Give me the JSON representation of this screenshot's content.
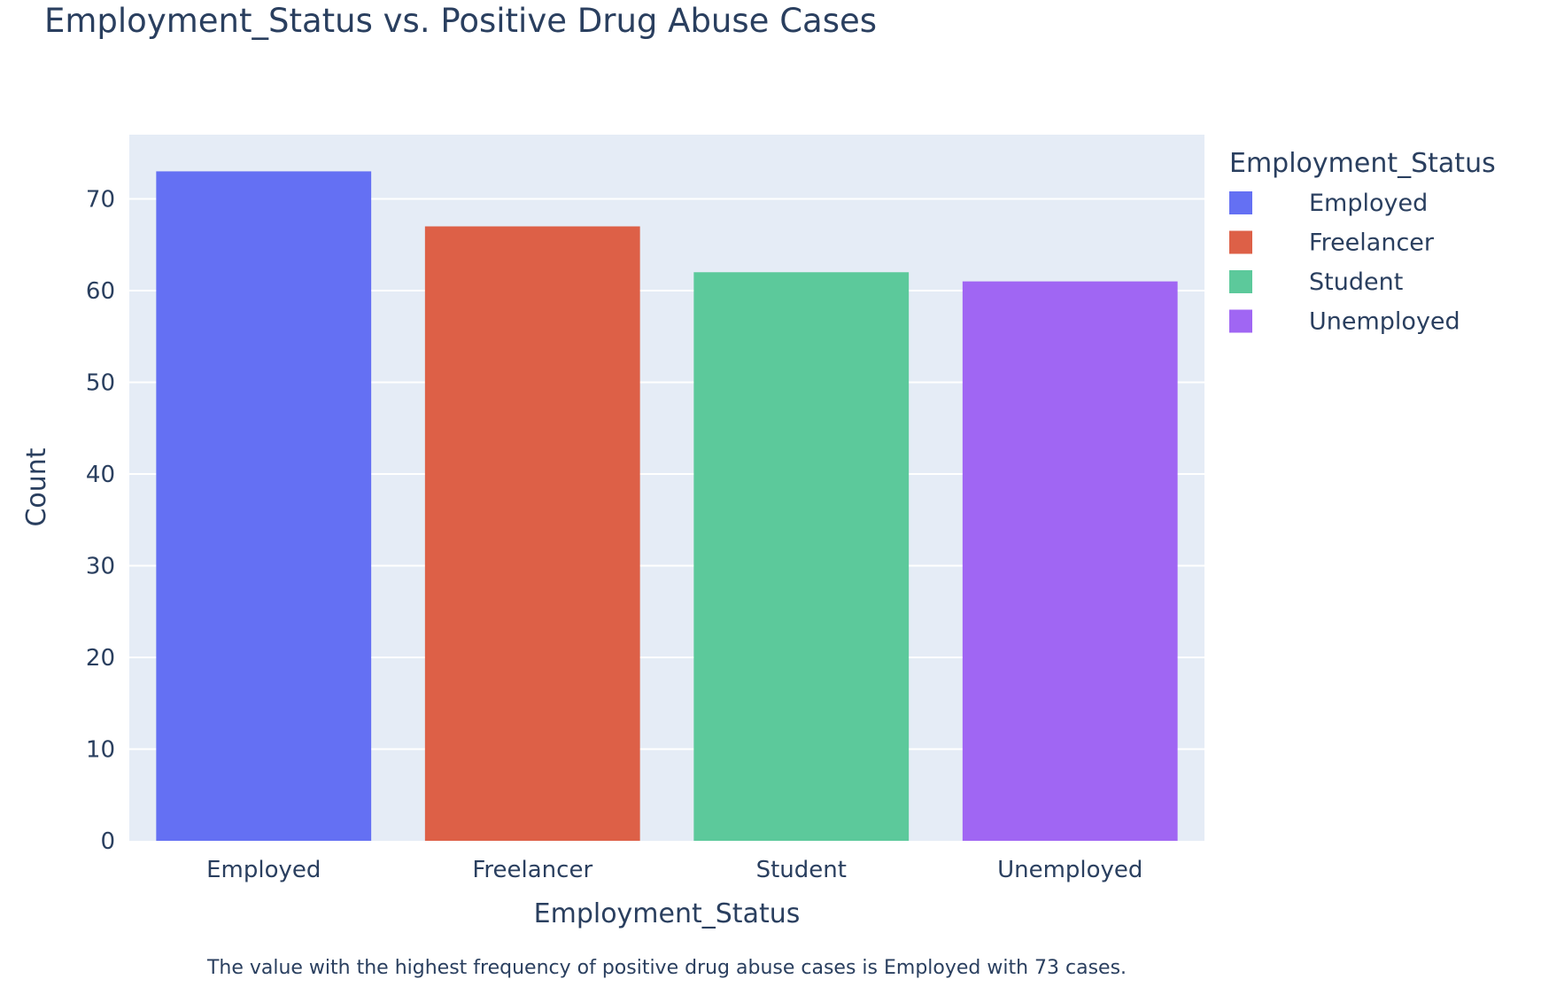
{
  "chart_data": {
    "type": "bar",
    "title": "Employment_Status vs. Positive Drug Abuse Cases",
    "xlabel": "Employment_Status",
    "ylabel": "Count",
    "categories": [
      "Employed",
      "Freelancer",
      "Student",
      "Unemployed"
    ],
    "values": [
      73,
      67,
      62,
      61
    ],
    "colors": [
      "#636efa",
      "#EF553B",
      "#00cc96",
      "#ab63fa"
    ],
    "ylim": [
      0,
      77
    ],
    "yticks": [
      0,
      10,
      20,
      30,
      40,
      50,
      60,
      70
    ],
    "grid": true,
    "legend": {
      "title": "Employment_Status",
      "placement": "top-right",
      "items": [
        "Employed",
        "Freelancer",
        "Student",
        "Unemployed"
      ]
    },
    "annotation": "The value with the highest frequency of positive drug abuse cases is Employed with 73 cases."
  },
  "style": {
    "plot_background": "#e5ecf6",
    "gridline_color": "#ffffff",
    "bar_colors": [
      "#6470f3",
      "#dd6047",
      "#5cc99b",
      "#a066f3"
    ],
    "text_color": "#2a3f5f"
  }
}
